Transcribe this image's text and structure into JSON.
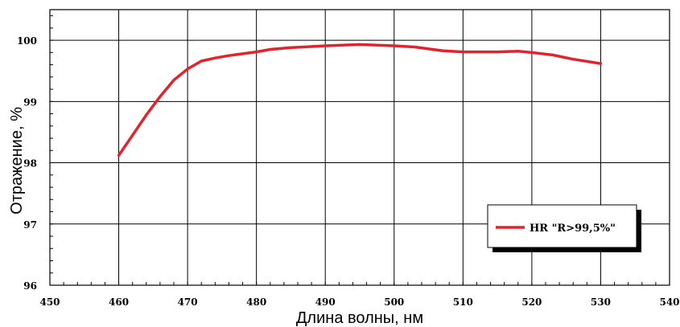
{
  "chart_data": {
    "type": "line",
    "xlabel": "Длина волны, нм",
    "ylabel": "Отражение, %",
    "xlim": [
      450,
      540
    ],
    "ylim": [
      96,
      100.5
    ],
    "x_ticks": [
      450,
      460,
      470,
      480,
      490,
      500,
      510,
      520,
      530,
      540
    ],
    "y_ticks": [
      96,
      97,
      98,
      99,
      100
    ],
    "grid": true,
    "legend_position": "bottom-right",
    "series": [
      {
        "name": "HR \"R>99,5%\"",
        "color": "#e3232b",
        "x": [
          460,
          462,
          464,
          466,
          468,
          470,
          472,
          474,
          476,
          478,
          480,
          482,
          485,
          490,
          495,
          500,
          503,
          507,
          510,
          515,
          518,
          520,
          523,
          526,
          530
        ],
        "y": [
          98.12,
          98.45,
          98.78,
          99.08,
          99.35,
          99.53,
          99.66,
          99.71,
          99.75,
          99.78,
          99.81,
          99.85,
          99.88,
          99.91,
          99.93,
          99.91,
          99.89,
          99.83,
          99.81,
          99.81,
          99.82,
          99.8,
          99.76,
          99.69,
          99.62
        ]
      }
    ]
  }
}
